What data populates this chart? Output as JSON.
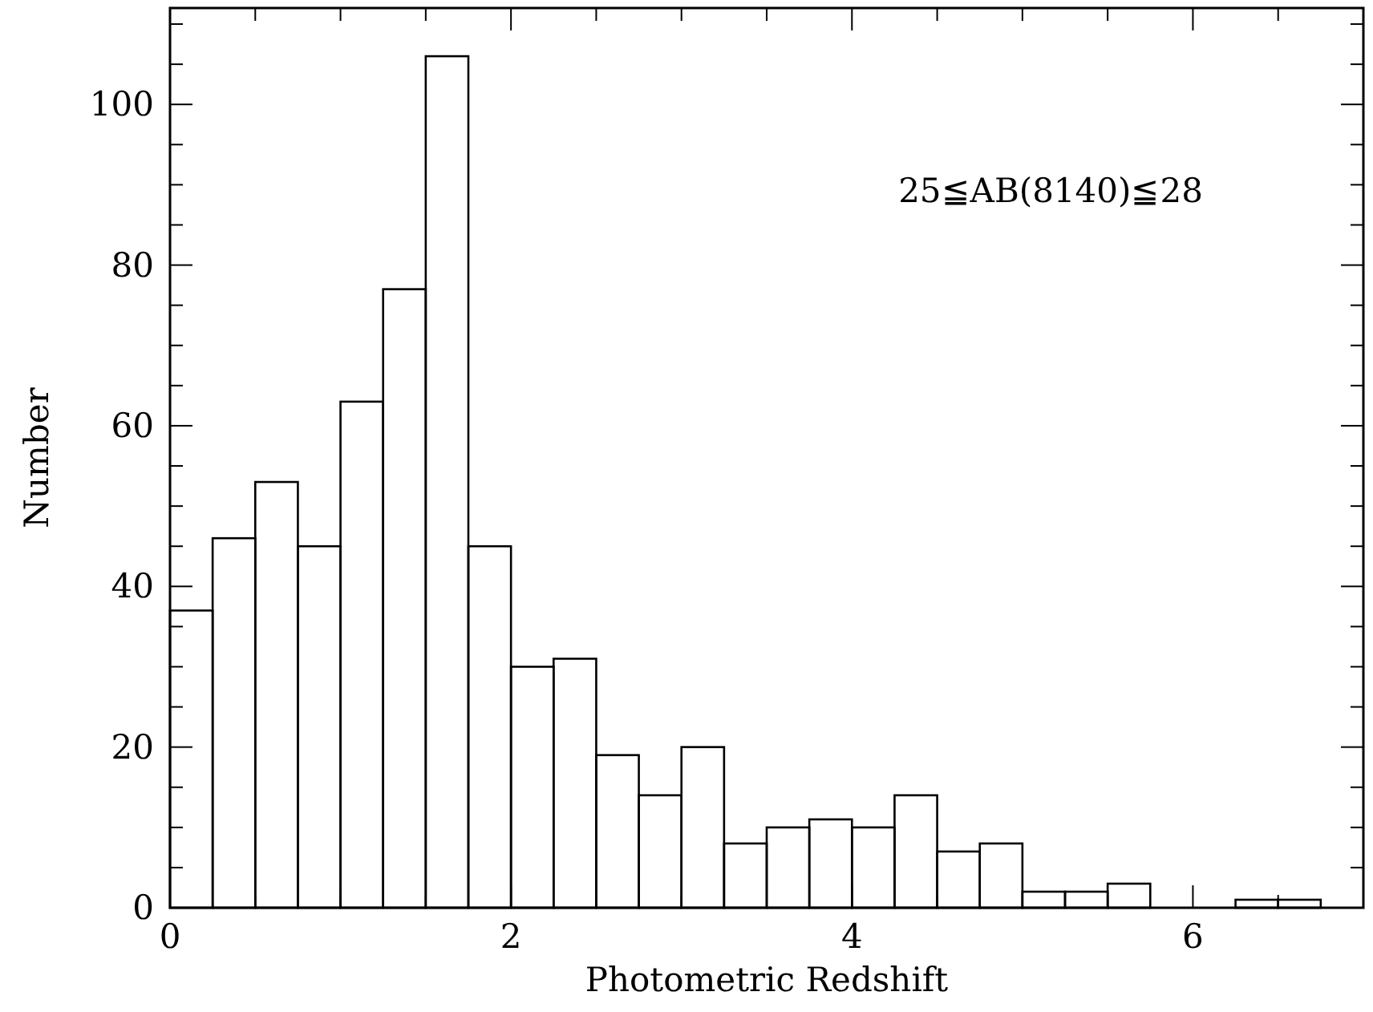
{
  "chart_data": {
    "type": "histogram",
    "xlabel": "Photometric Redshift",
    "ylabel": "Number",
    "annotations": [
      "25≦AB(8140)≦28"
    ],
    "bins": [
      0,
      0.25,
      0.5,
      0.75,
      1,
      1.25,
      1.5,
      1.75,
      2,
      2.25,
      2.5,
      2.75,
      3,
      3.25,
      3.5,
      3.75,
      4,
      4.25,
      4.5,
      4.75,
      5,
      5.25,
      5.5,
      5.75,
      6,
      6.25,
      6.5,
      6.75
    ],
    "values": [
      37,
      46,
      53,
      45,
      63,
      77,
      106,
      45,
      30,
      31,
      19,
      14,
      20,
      8,
      10,
      11,
      10,
      14,
      7,
      8,
      2,
      2,
      3,
      0,
      0,
      1,
      1
    ],
    "color": "#000000",
    "xlim": [
      0,
      7
    ],
    "ylim": [
      0,
      112
    ],
    "xticks": [
      0,
      {
        "value": 0.5,
        "label": null
      },
      {
        "value": 1,
        "label": null
      },
      {
        "value": 1.5,
        "label": null
      },
      2,
      {
        "value": 2.5,
        "label": null
      },
      {
        "value": 3,
        "label": null
      },
      {
        "value": 3.5,
        "label": null
      },
      4,
      {
        "value": 4.5,
        "label": null
      },
      {
        "value": 5,
        "label": null
      },
      {
        "value": 5.5,
        "label": null
      },
      6,
      {
        "value": 6.5,
        "label": null
      }
    ],
    "yticks": [
      0,
      {
        "value": 5,
        "label": null
      },
      {
        "value": 10,
        "label": null
      },
      {
        "value": 15,
        "label": null
      },
      20,
      {
        "value": 25,
        "label": null
      },
      {
        "value": 30,
        "label": null
      },
      {
        "value": 35,
        "label": null
      },
      40,
      {
        "value": 45,
        "label": null
      },
      {
        "value": 50,
        "label": null
      },
      {
        "value": 55,
        "label": null
      },
      60,
      {
        "value": 65,
        "label": null
      },
      {
        "value": 70,
        "label": null
      },
      {
        "value": 75,
        "label": null
      },
      80,
      {
        "value": 85,
        "label": null
      },
      {
        "value": 90,
        "label": null
      },
      {
        "value": 95,
        "label": null
      },
      100,
      {
        "value": 105,
        "label": null
      },
      {
        "value": 110,
        "label": null
      }
    ],
    "grid": false
  }
}
